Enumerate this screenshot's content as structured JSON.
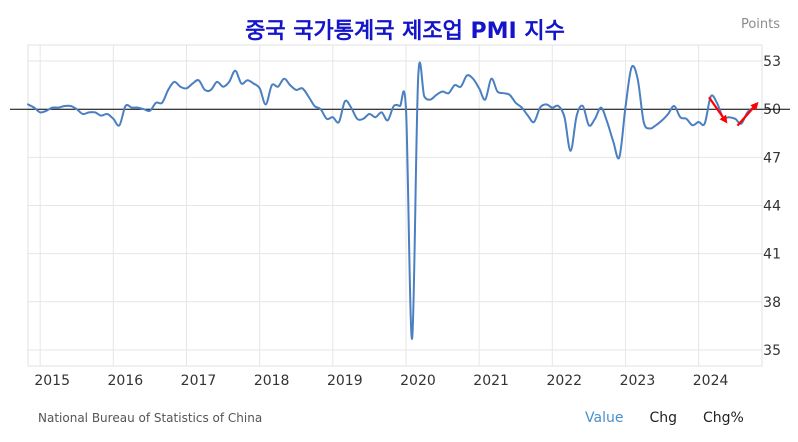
{
  "chart_data": {
    "type": "line",
    "title": "중국 국가통계국 제조업 PMI 지수",
    "unit_label": "Points",
    "y_ticks": [
      "53",
      "50",
      "47",
      "44",
      "41",
      "38",
      "35"
    ],
    "x_ticks": [
      "2015",
      "2016",
      "2017",
      "2018",
      "2019",
      "2020",
      "2021",
      "2022",
      "2023",
      "2024"
    ],
    "ylim": [
      34,
      54
    ],
    "reference_line": 50,
    "series": [
      {
        "color": "#4a7fc1",
        "points": [
          [
            "2014-11",
            50.3
          ],
          [
            "2014-12",
            50.1
          ],
          [
            "2015-01",
            49.8
          ],
          [
            "2015-02",
            49.9
          ],
          [
            "2015-03",
            50.1
          ],
          [
            "2015-04",
            50.1
          ],
          [
            "2015-05",
            50.2
          ],
          [
            "2015-06",
            50.2
          ],
          [
            "2015-07",
            50.0
          ],
          [
            "2015-08",
            49.7
          ],
          [
            "2015-09",
            49.8
          ],
          [
            "2015-10",
            49.8
          ],
          [
            "2015-11",
            49.6
          ],
          [
            "2015-12",
            49.7
          ],
          [
            "2016-01",
            49.4
          ],
          [
            "2016-02",
            49.0
          ],
          [
            "2016-03",
            50.2
          ],
          [
            "2016-04",
            50.1
          ],
          [
            "2016-05",
            50.1
          ],
          [
            "2016-06",
            50.0
          ],
          [
            "2016-07",
            49.9
          ],
          [
            "2016-08",
            50.4
          ],
          [
            "2016-09",
            50.4
          ],
          [
            "2016-10",
            51.2
          ],
          [
            "2016-11",
            51.7
          ],
          [
            "2016-12",
            51.4
          ],
          [
            "2017-01",
            51.3
          ],
          [
            "2017-02",
            51.6
          ],
          [
            "2017-03",
            51.8
          ],
          [
            "2017-04",
            51.2
          ],
          [
            "2017-05",
            51.2
          ],
          [
            "2017-06",
            51.7
          ],
          [
            "2017-07",
            51.4
          ],
          [
            "2017-08",
            51.7
          ],
          [
            "2017-09",
            52.4
          ],
          [
            "2017-10",
            51.6
          ],
          [
            "2017-11",
            51.8
          ],
          [
            "2017-12",
            51.6
          ],
          [
            "2018-01",
            51.3
          ],
          [
            "2018-02",
            50.3
          ],
          [
            "2018-03",
            51.5
          ],
          [
            "2018-04",
            51.4
          ],
          [
            "2018-05",
            51.9
          ],
          [
            "2018-06",
            51.5
          ],
          [
            "2018-07",
            51.2
          ],
          [
            "2018-08",
            51.3
          ],
          [
            "2018-09",
            50.8
          ],
          [
            "2018-10",
            50.2
          ],
          [
            "2018-11",
            50.0
          ],
          [
            "2018-12",
            49.4
          ],
          [
            "2019-01",
            49.5
          ],
          [
            "2019-02",
            49.2
          ],
          [
            "2019-03",
            50.5
          ],
          [
            "2019-04",
            50.1
          ],
          [
            "2019-05",
            49.4
          ],
          [
            "2019-06",
            49.4
          ],
          [
            "2019-07",
            49.7
          ],
          [
            "2019-08",
            49.5
          ],
          [
            "2019-09",
            49.8
          ],
          [
            "2019-10",
            49.3
          ],
          [
            "2019-11",
            50.2
          ],
          [
            "2019-12",
            50.2
          ],
          [
            "2020-01",
            50.0
          ],
          [
            "2020-02",
            35.7
          ],
          [
            "2020-03",
            52.0
          ],
          [
            "2020-04",
            50.8
          ],
          [
            "2020-05",
            50.6
          ],
          [
            "2020-06",
            50.9
          ],
          [
            "2020-07",
            51.1
          ],
          [
            "2020-08",
            51.0
          ],
          [
            "2020-09",
            51.5
          ],
          [
            "2020-10",
            51.4
          ],
          [
            "2020-11",
            52.1
          ],
          [
            "2020-12",
            51.9
          ],
          [
            "2021-01",
            51.3
          ],
          [
            "2021-02",
            50.6
          ],
          [
            "2021-03",
            51.9
          ],
          [
            "2021-04",
            51.1
          ],
          [
            "2021-05",
            51.0
          ],
          [
            "2021-06",
            50.9
          ],
          [
            "2021-07",
            50.4
          ],
          [
            "2021-08",
            50.1
          ],
          [
            "2021-09",
            49.6
          ],
          [
            "2021-10",
            49.2
          ],
          [
            "2021-11",
            50.1
          ],
          [
            "2021-12",
            50.3
          ],
          [
            "2022-01",
            50.1
          ],
          [
            "2022-02",
            50.2
          ],
          [
            "2022-03",
            49.5
          ],
          [
            "2022-04",
            47.4
          ],
          [
            "2022-05",
            49.6
          ],
          [
            "2022-06",
            50.2
          ],
          [
            "2022-07",
            49.0
          ],
          [
            "2022-08",
            49.4
          ],
          [
            "2022-09",
            50.1
          ],
          [
            "2022-10",
            49.2
          ],
          [
            "2022-11",
            48.0
          ],
          [
            "2022-12",
            47.0
          ],
          [
            "2023-01",
            50.1
          ],
          [
            "2023-02",
            52.6
          ],
          [
            "2023-03",
            51.9
          ],
          [
            "2023-04",
            49.2
          ],
          [
            "2023-05",
            48.8
          ],
          [
            "2023-06",
            49.0
          ],
          [
            "2023-07",
            49.3
          ],
          [
            "2023-08",
            49.7
          ],
          [
            "2023-09",
            50.2
          ],
          [
            "2023-10",
            49.5
          ],
          [
            "2023-11",
            49.4
          ],
          [
            "2023-12",
            49.0
          ],
          [
            "2024-01",
            49.2
          ],
          [
            "2024-02",
            49.1
          ],
          [
            "2024-03",
            50.8
          ],
          [
            "2024-04",
            50.4
          ],
          [
            "2024-05",
            49.5
          ],
          [
            "2024-06",
            49.5
          ],
          [
            "2024-07",
            49.4
          ],
          [
            "2024-08",
            49.1
          ],
          [
            "2024-09",
            49.8
          ],
          [
            "2024-10",
            50.1
          ]
        ]
      }
    ],
    "annotations": [
      {
        "kind": "arrow",
        "color": "#ff0000",
        "points_to": "2024-05"
      },
      {
        "kind": "arrow",
        "color": "#ff0000",
        "points_to": "2024-10"
      }
    ],
    "grid": true,
    "legend": "none"
  },
  "footer": {
    "source": "National Bureau of Statistics of China",
    "tabs": [
      {
        "label": "Value",
        "active": true
      },
      {
        "label": "Chg",
        "active": false
      },
      {
        "label": "Chg%",
        "active": false
      }
    ]
  }
}
